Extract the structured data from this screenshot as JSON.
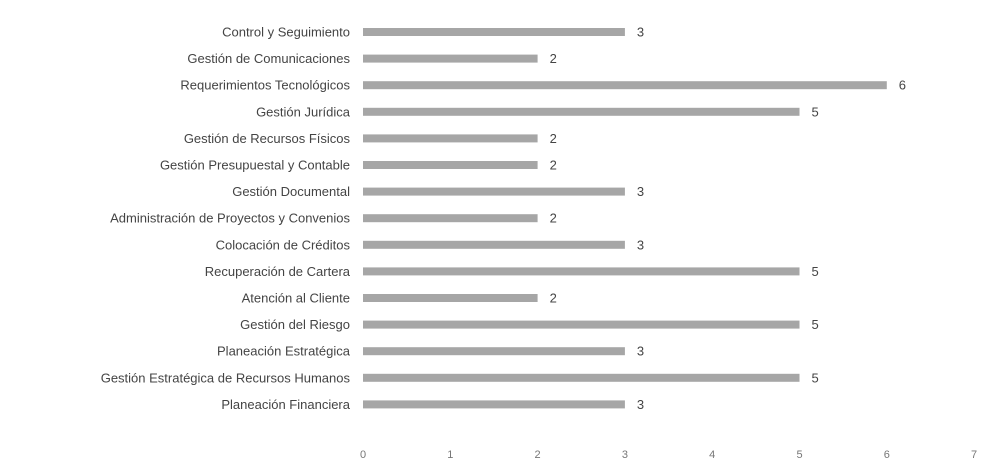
{
  "chart_data": {
    "type": "bar",
    "orientation": "horizontal",
    "categories": [
      "Control y Seguimiento",
      "Gestión de Comunicaciones",
      "Requerimientos Tecnológicos",
      "Gestión Jurídica",
      "Gestión de Recursos Físicos",
      "Gestión Presupuestal y Contable",
      "Gestión Documental",
      "Administración de Proyectos y Convenios",
      "Colocación de Créditos",
      "Recuperación de Cartera",
      "Atención al Cliente",
      "Gestión del Riesgo",
      "Planeación Estratégica",
      "Gestión Estratégica de Recursos Humanos",
      "Planeación Financiera"
    ],
    "values": [
      3,
      2,
      6,
      5,
      2,
      2,
      3,
      2,
      3,
      5,
      2,
      5,
      3,
      5,
      3
    ],
    "xlim": [
      0,
      7
    ],
    "xticks": [
      "0",
      "1",
      "2",
      "3",
      "4",
      "5",
      "6",
      "7"
    ],
    "title": "",
    "xlabel": "",
    "ylabel": "",
    "grid": false,
    "bar_color": "#a6a6a6",
    "text_color": "#444444"
  }
}
